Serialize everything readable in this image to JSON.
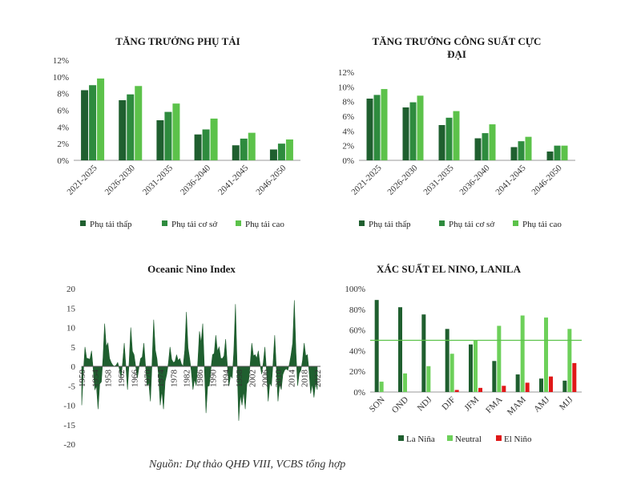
{
  "colors": {
    "dark": "#1f5f2f",
    "mid": "#2e8b3e",
    "light": "#5cc24a",
    "neutral": "#6dd05a",
    "elnino": "#e01818",
    "area": "#1f5f2f",
    "refline": "#5cc24a"
  },
  "chart_data": [
    {
      "type": "bar",
      "title": "TĂNG TRƯỞNG PHỤ TẢI",
      "categories": [
        "2021-2025",
        "2026-2030",
        "2031-2035",
        "2036-2040",
        "2041-2045",
        "2046-2050"
      ],
      "series": [
        {
          "name": "Phụ tải thấp",
          "values": [
            8.4,
            7.2,
            4.8,
            3.1,
            1.8,
            1.3
          ]
        },
        {
          "name": "Phụ tải cơ sở",
          "values": [
            9.0,
            7.9,
            5.8,
            3.7,
            2.6,
            2.0
          ]
        },
        {
          "name": "Phụ tải cao",
          "values": [
            9.8,
            8.9,
            6.8,
            5.0,
            3.3,
            2.5
          ]
        }
      ],
      "yticks": [
        "0%",
        "2%",
        "4%",
        "6%",
        "8%",
        "10%",
        "12%"
      ],
      "ylim": [
        0,
        12
      ]
    },
    {
      "type": "bar",
      "title": "TĂNG TRƯỞNG CÔNG SUẤT CỰC ĐẠI",
      "categories": [
        "2021-2025",
        "2026-2030",
        "2031-2035",
        "2036-2040",
        "2041-2045",
        "2046-2050"
      ],
      "series": [
        {
          "name": "Phụ tải thấp",
          "values": [
            8.4,
            7.2,
            4.8,
            3.0,
            1.8,
            1.2
          ]
        },
        {
          "name": "Phụ tải cơ sở",
          "values": [
            8.9,
            7.9,
            5.8,
            3.7,
            2.6,
            2.0
          ]
        },
        {
          "name": "Phụ tải cao",
          "values": [
            9.7,
            8.8,
            6.7,
            4.9,
            3.2,
            2.0
          ]
        }
      ],
      "yticks": [
        "0%",
        "2%",
        "4%",
        "6%",
        "8%",
        "10%",
        "12%"
      ],
      "ylim": [
        0,
        12
      ]
    },
    {
      "type": "area",
      "title": "Oceanic Nino Index",
      "yticks": [
        "-20",
        "-15",
        "-10",
        "-5",
        "0",
        "5",
        "10",
        "15",
        "20"
      ],
      "ylim": [
        -20,
        20
      ],
      "xlim": [
        1950,
        2023
      ],
      "xticks": [
        "1950",
        "1954",
        "1958",
        "1962",
        "1966",
        "1970",
        "1974",
        "1978",
        "1982",
        "1986",
        "1990",
        "1994",
        "1998",
        "2002",
        "2006",
        "2010",
        "2014",
        "2018",
        "2022"
      ],
      "x": [
        1950,
        1951,
        1952,
        1953,
        1954,
        1955,
        1956,
        1957,
        1958,
        1959,
        1960,
        1961,
        1962,
        1963,
        1964,
        1965,
        1966,
        1967,
        1968,
        1969,
        1970,
        1971,
        1972,
        1973,
        1974,
        1975,
        1976,
        1977,
        1978,
        1979,
        1980,
        1981,
        1982,
        1983,
        1984,
        1985,
        1986,
        1987,
        1988,
        1989,
        1990,
        1991,
        1992,
        1993,
        1994,
        1995,
        1996,
        1997,
        1998,
        1999,
        2000,
        2001,
        2002,
        2003,
        2004,
        2005,
        2006,
        2007,
        2008,
        2009,
        2010,
        2011,
        2012,
        2013,
        2014,
        2015,
        2016,
        2017,
        2018,
        2019,
        2020,
        2021,
        2022
      ],
      "values": [
        -10,
        5,
        2,
        4,
        -6,
        -11,
        -4,
        11,
        6,
        1,
        0,
        1,
        -3,
        6,
        -6,
        10,
        3,
        -3,
        2,
        6,
        -5,
        -9,
        12,
        2,
        -10,
        -11,
        -2,
        5,
        1,
        3,
        2,
        0,
        14,
        2,
        -6,
        -5,
        9,
        11,
        -12,
        -5,
        3,
        8,
        5,
        2,
        7,
        -5,
        -3,
        16,
        -14,
        -10,
        -11,
        -4,
        6,
        3,
        4,
        -2,
        5,
        -9,
        -5,
        8,
        -9,
        -6,
        -1,
        -1,
        3,
        17,
        -5,
        -1,
        6,
        3,
        -7,
        -8,
        -6
      ]
    },
    {
      "type": "bar",
      "title": "XÁC SUẤT EL NINO, LANILA",
      "categories": [
        "SON",
        "OND",
        "NDJ",
        "DJF",
        "JFM",
        "FMA",
        "MAM",
        "AMJ",
        "MJJ"
      ],
      "series": [
        {
          "name": "La Niña",
          "values": [
            89,
            82,
            75,
            61,
            46,
            30,
            17,
            13,
            11
          ]
        },
        {
          "name": "Neutral",
          "values": [
            10,
            18,
            25,
            37,
            50,
            64,
            74,
            72,
            61
          ]
        },
        {
          "name": "El Niño",
          "values": [
            0,
            0,
            0,
            2,
            4,
            6,
            9,
            15,
            28
          ]
        }
      ],
      "yticks": [
        "0%",
        "20%",
        "40%",
        "60%",
        "80%",
        "100%"
      ],
      "ylim": [
        0,
        100
      ],
      "reference_line": 50
    }
  ],
  "source": "Nguồn: Dự thảo QHĐ VIII, VCBS tổng hợp"
}
